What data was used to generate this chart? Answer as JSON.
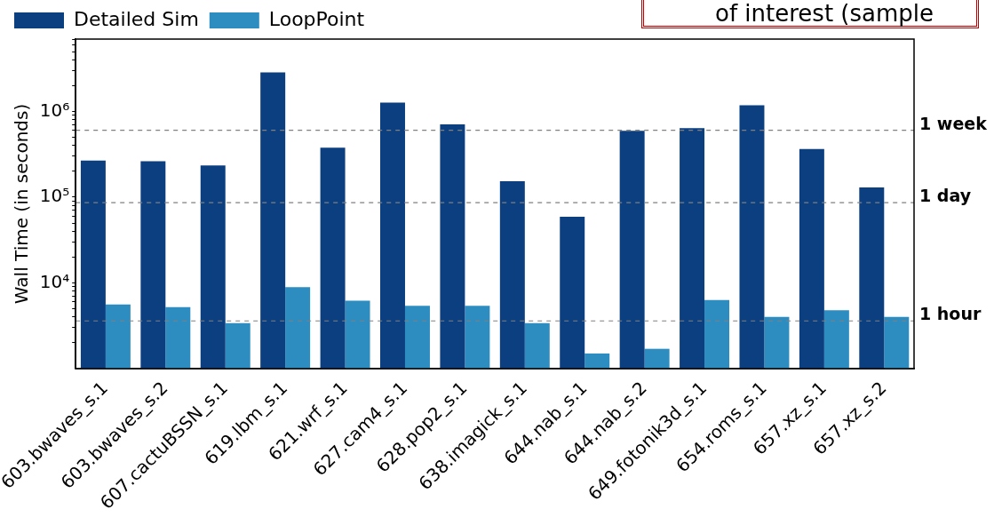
{
  "chart_data": {
    "type": "bar",
    "ylabel": "Wall Time (in seconds)",
    "categories": [
      "603.bwaves_s.1",
      "603.bwaves_s.2",
      "607.cactuBSSN_s.1",
      "619.lbm_s.1",
      "621.wrf_s.1",
      "627.cam4_s.1",
      "628.pop2_s.1",
      "638.imagick_s.1",
      "644.nab_s.1",
      "644.nab_s.2",
      "649.fotonik3d_s.1",
      "654.roms_s.1",
      "657.xz_s.1",
      "657.xz_s.2"
    ],
    "series": [
      {
        "name": "Detailed Sim",
        "color": "#0b3f80",
        "values": [
          268000,
          263000,
          234000,
          2860000,
          378000,
          1270000,
          708000,
          154000,
          59000,
          597000,
          638000,
          1180000,
          366000,
          130000
        ]
      },
      {
        "name": "LoopPoint",
        "color": "#2d8dc0",
        "values": [
          5600,
          5200,
          3400,
          8900,
          6200,
          5400,
          5400,
          3400,
          1500,
          1700,
          6300,
          4000,
          4800,
          4000
        ]
      }
    ],
    "log": "y",
    "ylim": [
      1000,
      7000000
    ],
    "yticks": [
      {
        "value": 2000,
        "label": null
      },
      {
        "value": 3000,
        "label": null
      },
      {
        "value": 4000,
        "label": null
      },
      {
        "value": 5000,
        "label": null
      },
      {
        "value": 6000,
        "label": null
      },
      {
        "value": 7000,
        "label": null
      },
      {
        "value": 8000,
        "label": null
      },
      {
        "value": 9000,
        "label": null
      },
      {
        "value": 10000,
        "label": "10⁴"
      },
      {
        "value": 20000,
        "label": null
      },
      {
        "value": 30000,
        "label": null
      },
      {
        "value": 40000,
        "label": null
      },
      {
        "value": 50000,
        "label": null
      },
      {
        "value": 60000,
        "label": null
      },
      {
        "value": 70000,
        "label": null
      },
      {
        "value": 80000,
        "label": null
      },
      {
        "value": 90000,
        "label": null
      },
      {
        "value": 100000,
        "label": "10⁵"
      },
      {
        "value": 200000,
        "label": null
      },
      {
        "value": 300000,
        "label": null
      },
      {
        "value": 400000,
        "label": null
      },
      {
        "value": 500000,
        "label": null
      },
      {
        "value": 600000,
        "label": null
      },
      {
        "value": 700000,
        "label": null
      },
      {
        "value": 800000,
        "label": null
      },
      {
        "value": 900000,
        "label": null
      },
      {
        "value": 1000000,
        "label": "10⁶"
      },
      {
        "value": 2000000,
        "label": null
      },
      {
        "value": 3000000,
        "label": null
      },
      {
        "value": 4000000,
        "label": null
      },
      {
        "value": 5000000,
        "label": null
      },
      {
        "value": 6000000,
        "label": null
      },
      {
        "value": 7000000,
        "label": null
      }
    ],
    "ref_lines": [
      {
        "axis": "y",
        "value": 604800,
        "label": "1 week",
        "color": "#808080",
        "line_style": "dashed"
      },
      {
        "axis": "y",
        "value": 86400,
        "label": "1 day",
        "color": "#808080",
        "line_style": "dashed"
      },
      {
        "axis": "y",
        "value": 3600,
        "label": "1 hour",
        "color": "#808080",
        "line_style": "dashed"
      }
    ],
    "legend": "top left",
    "annotations": [
      "of interest (sample"
    ]
  }
}
